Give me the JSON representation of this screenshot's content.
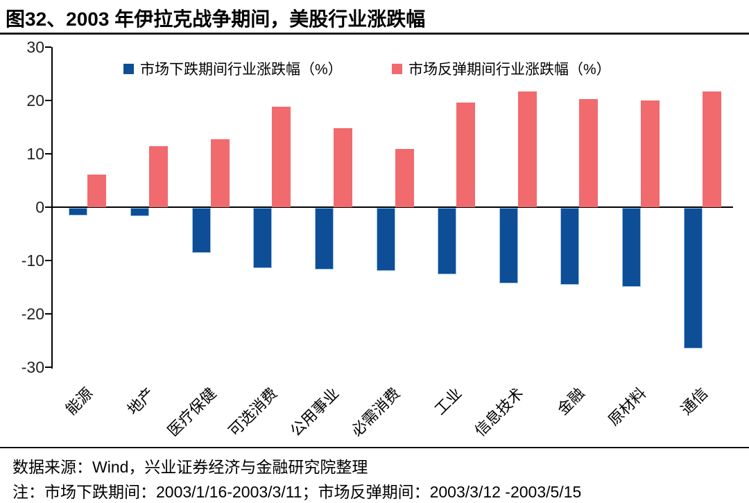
{
  "header": {
    "title": "图32、2003 年伊拉克战争期间，美股行业涨跌幅"
  },
  "chart_data": {
    "type": "bar",
    "title": "2003 年伊拉克战争期间，美股行业涨跌幅",
    "categories": [
      "能源",
      "地产",
      "医疗保健",
      "可选消费",
      "公用事业",
      "必需消费",
      "工业",
      "信息技术",
      "金融",
      "原材料",
      "通信"
    ],
    "series": [
      {
        "name": "市场下跌期间行业涨跌幅（%）",
        "color": "#0d4e97",
        "values": [
          -1.4,
          -1.5,
          -8.5,
          -11.3,
          -11.6,
          -11.8,
          -12.5,
          -14.1,
          -14.4,
          -14.8,
          -26.4
        ]
      },
      {
        "name": "市场反弹期间行业涨跌幅（%）",
        "color": "#f16a6d",
        "values": [
          6.1,
          11.4,
          12.7,
          18.8,
          14.8,
          10.9,
          19.6,
          21.7,
          20.3,
          20.0,
          21.7
        ]
      }
    ],
    "xlabel": "",
    "ylabel": "",
    "ylim": [
      -30,
      30
    ],
    "yticks": [
      30,
      20,
      10,
      0,
      -10,
      -20,
      -30
    ],
    "grid": false,
    "legend_position": "top"
  },
  "footer": {
    "source": "数据来源：Wind，兴业证券经济与金融研究院整理",
    "note": "注：市场下跌期间：2003/1/16-2003/3/11；市场反弹期间：2003/3/12 -2003/5/15"
  }
}
